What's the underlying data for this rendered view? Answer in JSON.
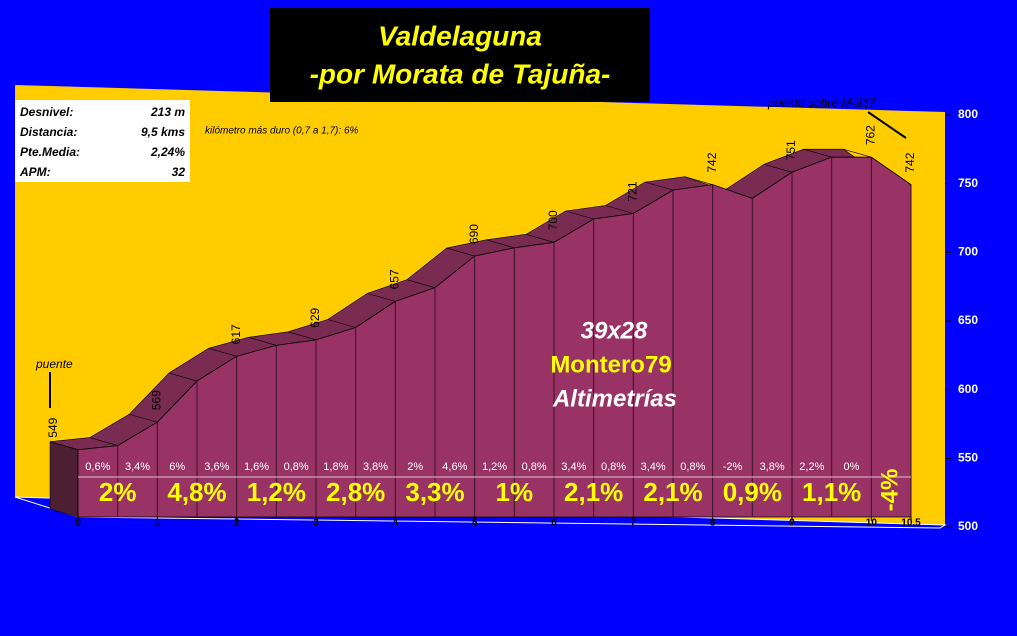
{
  "title_lines": [
    "Valdelaguna",
    "-por Morata de Tajuña-"
  ],
  "info_box": [
    [
      "Desnivel:",
      "213 m"
    ],
    [
      "Distancia:",
      "9,5 kms"
    ],
    [
      "Pte.Media:",
      "2,24%"
    ],
    [
      "APM:",
      "32"
    ]
  ],
  "chart_data": {
    "type": "area",
    "hardest_km": "kilómetro más duro (0,7 a 1,7):   6%",
    "watermark": [
      "39x28",
      "Montero79",
      "Altimetrías"
    ],
    "annotations": [
      "puente",
      "puente sobre M-317"
    ],
    "color": "#993366",
    "x": [
      0,
      0.5,
      1,
      1.5,
      2,
      2.5,
      3,
      3.5,
      4,
      4.5,
      5,
      5.5,
      6,
      6.5,
      7,
      7.5,
      8,
      8.5,
      9,
      9.5,
      10,
      10.5
    ],
    "values": [
      549,
      552,
      569,
      599,
      617,
      625,
      629,
      638,
      657,
      667,
      690,
      696,
      700,
      717,
      721,
      738,
      742,
      732,
      751,
      762,
      762,
      742
    ],
    "xlim": [
      0,
      10.5
    ],
    "xticks": [
      0,
      1,
      2,
      3,
      4,
      5,
      6,
      7,
      8,
      9,
      10,
      10.5
    ],
    "ylim": [
      500,
      800
    ],
    "yticks": [
      500,
      550,
      600,
      650,
      700,
      750,
      800
    ],
    "half_km_gradients": {
      "values": [
        0.6,
        3.4,
        6,
        3.6,
        1.6,
        0.8,
        1.8,
        3.8,
        2,
        4.6,
        1.2,
        0.8,
        3.4,
        0.8,
        3.4,
        0.8,
        -2,
        3.8,
        2.2,
        0
      ],
      "value_labels": [
        "0,6%",
        "3,4%",
        "6%",
        "3,6%",
        "1,6%",
        "0,8%",
        "1,8%",
        "3,8%",
        "2%",
        "4,6%",
        "1,2%",
        "0,8%",
        "3,4%",
        "0,8%",
        "3,4%",
        "0,8%",
        "-2%",
        "3,8%",
        "2,2%",
        "0%"
      ]
    },
    "km_gradients": {
      "values": [
        2,
        4.8,
        1.2,
        2.8,
        3.3,
        1,
        2.1,
        2.1,
        0.9,
        1.1,
        -4
      ],
      "value_labels": [
        "2%",
        "4,8%",
        "1,2%",
        "2,8%",
        "3,3%",
        "1%",
        "2,1%",
        "2,1%",
        "0,9%",
        "1,1%",
        "-4%"
      ]
    }
  }
}
